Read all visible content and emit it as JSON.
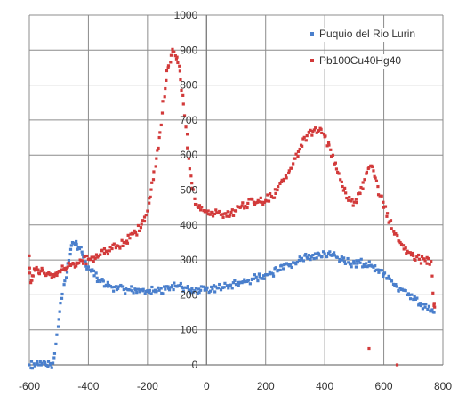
{
  "chart_data": {
    "type": "scatter",
    "title": "",
    "xlabel": "",
    "ylabel": "",
    "xlim": [
      -600,
      800
    ],
    "ylim": [
      0,
      1000
    ],
    "x_ticks": [
      -600,
      -400,
      -200,
      0,
      200,
      400,
      600,
      800
    ],
    "y_ticks": [
      0,
      100,
      200,
      300,
      400,
      500,
      600,
      700,
      800,
      900,
      1000
    ],
    "x_tick_labels": [
      "-600",
      "-400",
      "-200",
      "0",
      "200",
      "400",
      "600",
      "800"
    ],
    "y_tick_labels": [
      "0",
      "100",
      "200",
      "300",
      "400",
      "500",
      "600",
      "700",
      "800",
      "900",
      "1000"
    ],
    "grid": {
      "horizontal": true,
      "vertical": true
    },
    "legend_position": "top-right",
    "series": [
      {
        "name": "Puquio del Rio Lurin",
        "color": "#4a7fcc",
        "marker": "square",
        "points": [
          [
            -600,
            0
          ],
          [
            -560,
            0
          ],
          [
            -530,
            0
          ],
          [
            -520,
            5
          ],
          [
            -510,
            60
          ],
          [
            -500,
            130
          ],
          [
            -490,
            190
          ],
          [
            -480,
            240
          ],
          [
            -470,
            290
          ],
          [
            -460,
            330
          ],
          [
            -450,
            348
          ],
          [
            -440,
            345
          ],
          [
            -430,
            332
          ],
          [
            -420,
            315
          ],
          [
            -410,
            295
          ],
          [
            -400,
            280
          ],
          [
            -380,
            255
          ],
          [
            -360,
            238
          ],
          [
            -340,
            228
          ],
          [
            -320,
            222
          ],
          [
            -300,
            218
          ],
          [
            -280,
            215
          ],
          [
            -260,
            214
          ],
          [
            -240,
            215
          ],
          [
            -220,
            214
          ],
          [
            -200,
            212
          ],
          [
            -180,
            211
          ],
          [
            -160,
            213
          ],
          [
            -140,
            216
          ],
          [
            -120,
            222
          ],
          [
            -100,
            224
          ],
          [
            -80,
            220
          ],
          [
            -60,
            214
          ],
          [
            -40,
            212
          ],
          [
            -20,
            213
          ],
          [
            0,
            215
          ],
          [
            20,
            217
          ],
          [
            40,
            220
          ],
          [
            60,
            222
          ],
          [
            80,
            225
          ],
          [
            100,
            230
          ],
          [
            120,
            235
          ],
          [
            140,
            240
          ],
          [
            160,
            246
          ],
          [
            180,
            252
          ],
          [
            200,
            258
          ],
          [
            220,
            262
          ],
          [
            240,
            268
          ],
          [
            260,
            275
          ],
          [
            280,
            283
          ],
          [
            300,
            292
          ],
          [
            320,
            300
          ],
          [
            340,
            308
          ],
          [
            360,
            314
          ],
          [
            380,
            318
          ],
          [
            400,
            318
          ],
          [
            420,
            314
          ],
          [
            440,
            308
          ],
          [
            460,
            300
          ],
          [
            480,
            293
          ],
          [
            500,
            290
          ],
          [
            520,
            292
          ],
          [
            540,
            290
          ],
          [
            560,
            282
          ],
          [
            580,
            272
          ],
          [
            600,
            260
          ],
          [
            620,
            246
          ],
          [
            640,
            230
          ],
          [
            660,
            215
          ],
          [
            680,
            200
          ],
          [
            700,
            187
          ],
          [
            720,
            175
          ],
          [
            740,
            165
          ],
          [
            760,
            155
          ],
          [
            770,
            150
          ]
        ]
      },
      {
        "name": "Pb100Cu40Hg40",
        "color": "#d23a3a",
        "marker": "square",
        "points": [
          [
            -600,
            312
          ],
          [
            -595,
            235
          ],
          [
            -590,
            255
          ],
          [
            -580,
            270
          ],
          [
            -570,
            272
          ],
          [
            -560,
            268
          ],
          [
            -550,
            262
          ],
          [
            -540,
            260
          ],
          [
            -530,
            258
          ],
          [
            -520,
            258
          ],
          [
            -510,
            262
          ],
          [
            -500,
            268
          ],
          [
            -490,
            272
          ],
          [
            -480,
            276
          ],
          [
            -470,
            280
          ],
          [
            -460,
            284
          ],
          [
            -450,
            288
          ],
          [
            -440,
            292
          ],
          [
            -420,
            298
          ],
          [
            -400,
            302
          ],
          [
            -380,
            308
          ],
          [
            -360,
            315
          ],
          [
            -340,
            324
          ],
          [
            -320,
            332
          ],
          [
            -300,
            340
          ],
          [
            -280,
            350
          ],
          [
            -260,
            362
          ],
          [
            -240,
            378
          ],
          [
            -220,
            402
          ],
          [
            -200,
            440
          ],
          [
            -190,
            480
          ],
          [
            -180,
            530
          ],
          [
            -170,
            590
          ],
          [
            -160,
            650
          ],
          [
            -150,
            720
          ],
          [
            -140,
            790
          ],
          [
            -130,
            850
          ],
          [
            -120,
            885
          ],
          [
            -110,
            895
          ],
          [
            -100,
            880
          ],
          [
            -90,
            840
          ],
          [
            -80,
            770
          ],
          [
            -70,
            680
          ],
          [
            -60,
            590
          ],
          [
            -50,
            520
          ],
          [
            -40,
            475
          ],
          [
            -30,
            452
          ],
          [
            -20,
            443
          ],
          [
            0,
            438
          ],
          [
            20,
            436
          ],
          [
            40,
            434
          ],
          [
            60,
            432
          ],
          [
            80,
            428
          ],
          [
            100,
            440
          ],
          [
            120,
            455
          ],
          [
            140,
            462
          ],
          [
            160,
            465
          ],
          [
            180,
            466
          ],
          [
            200,
            470
          ],
          [
            220,
            482
          ],
          [
            240,
            500
          ],
          [
            260,
            525
          ],
          [
            280,
            555
          ],
          [
            300,
            590
          ],
          [
            320,
            628
          ],
          [
            340,
            655
          ],
          [
            360,
            668
          ],
          [
            380,
            670
          ],
          [
            400,
            652
          ],
          [
            420,
            615
          ],
          [
            440,
            560
          ],
          [
            460,
            510
          ],
          [
            480,
            470
          ],
          [
            500,
            465
          ],
          [
            520,
            490
          ],
          [
            535,
            530
          ],
          [
            550,
            565
          ],
          [
            565,
            555
          ],
          [
            580,
            510
          ],
          [
            600,
            450
          ],
          [
            620,
            410
          ],
          [
            640,
            375
          ],
          [
            660,
            345
          ],
          [
            680,
            325
          ],
          [
            700,
            312
          ],
          [
            720,
            302
          ],
          [
            740,
            298
          ],
          [
            760,
            296
          ],
          [
            770,
            175
          ],
          [
            772,
            165
          ],
          [
            550,
            47
          ],
          [
            645,
            0
          ]
        ]
      }
    ]
  }
}
